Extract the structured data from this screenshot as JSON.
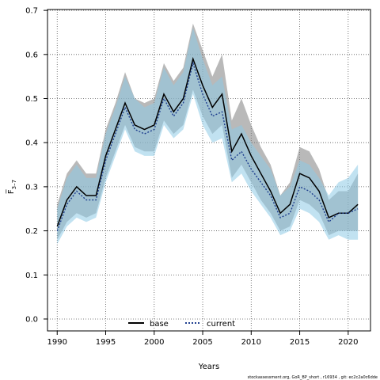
{
  "chart_data": {
    "type": "line",
    "xlabel": "Years",
    "ylabel": "F̅ 3–7",
    "ylabel_main": "F̅",
    "ylabel_sub": "3–7",
    "xlim": [
      1989,
      2022.3
    ],
    "ylim": [
      -0.027,
      0.702
    ],
    "x_ticks": [
      1990,
      1995,
      2000,
      2005,
      2010,
      2015,
      2020
    ],
    "y_ticks": [
      0.0,
      0.1,
      0.2,
      0.3,
      0.4,
      0.5,
      0.6,
      0.7
    ],
    "y_tick_labels": [
      "0.0",
      "0.1",
      "0.2",
      "0.3",
      "0.4",
      "0.5",
      "0.6",
      "0.7"
    ],
    "grid": true,
    "legend_position": "bottom-center",
    "x": [
      1990,
      1991,
      1992,
      1993,
      1994,
      1995,
      1996,
      1997,
      1998,
      1999,
      2000,
      2001,
      2002,
      2003,
      2004,
      2005,
      2006,
      2007,
      2008,
      2009,
      2010,
      2011,
      2012,
      2013,
      2014,
      2015,
      2016,
      2017,
      2018,
      2019,
      2020,
      2021
    ],
    "series": [
      {
        "name": "base",
        "color": "#000000",
        "band_color": "#7f7f7f",
        "line_style": "solid",
        "values": [
          0.21,
          0.27,
          0.3,
          0.28,
          0.28,
          0.37,
          0.43,
          0.49,
          0.44,
          0.43,
          0.44,
          0.51,
          0.47,
          0.5,
          0.59,
          0.53,
          0.48,
          0.51,
          0.38,
          0.42,
          0.37,
          0.33,
          0.29,
          0.24,
          0.26,
          0.33,
          0.32,
          0.29,
          0.23,
          0.24,
          0.24,
          0.26
        ],
        "lower": [
          0.18,
          0.22,
          0.24,
          0.23,
          0.24,
          0.32,
          0.38,
          0.44,
          0.39,
          0.38,
          0.38,
          0.45,
          0.42,
          0.44,
          0.52,
          0.46,
          0.42,
          0.44,
          0.32,
          0.35,
          0.31,
          0.27,
          0.24,
          0.2,
          0.21,
          0.27,
          0.26,
          0.24,
          0.19,
          0.2,
          0.2,
          0.2
        ],
        "upper": [
          0.26,
          0.33,
          0.36,
          0.33,
          0.33,
          0.43,
          0.49,
          0.56,
          0.5,
          0.49,
          0.5,
          0.58,
          0.54,
          0.57,
          0.67,
          0.61,
          0.55,
          0.6,
          0.45,
          0.5,
          0.44,
          0.39,
          0.35,
          0.28,
          0.31,
          0.39,
          0.38,
          0.34,
          0.27,
          0.29,
          0.29,
          0.33
        ]
      },
      {
        "name": "current",
        "color": "#1f3f8f",
        "band_color": "#8ecae6",
        "line_style": "dotted",
        "values": [
          0.2,
          0.26,
          0.29,
          0.27,
          0.27,
          0.36,
          0.42,
          0.48,
          0.43,
          0.42,
          0.43,
          0.5,
          0.46,
          0.49,
          0.58,
          0.51,
          0.46,
          0.47,
          0.36,
          0.38,
          0.34,
          0.31,
          0.28,
          0.23,
          0.24,
          0.3,
          0.29,
          0.27,
          0.22,
          0.24,
          0.24,
          0.25
        ],
        "lower": [
          0.17,
          0.21,
          0.23,
          0.22,
          0.23,
          0.31,
          0.37,
          0.43,
          0.38,
          0.37,
          0.37,
          0.44,
          0.41,
          0.43,
          0.51,
          0.44,
          0.4,
          0.41,
          0.31,
          0.33,
          0.29,
          0.26,
          0.23,
          0.19,
          0.2,
          0.25,
          0.24,
          0.22,
          0.18,
          0.19,
          0.18,
          0.18
        ],
        "upper": [
          0.25,
          0.32,
          0.35,
          0.32,
          0.32,
          0.42,
          0.48,
          0.55,
          0.5,
          0.48,
          0.49,
          0.57,
          0.53,
          0.56,
          0.66,
          0.59,
          0.53,
          0.55,
          0.43,
          0.44,
          0.4,
          0.37,
          0.34,
          0.28,
          0.3,
          0.36,
          0.35,
          0.32,
          0.28,
          0.31,
          0.32,
          0.35
        ]
      }
    ]
  },
  "footer": {
    "caption": "stockassessment.org, GoR_BP_short , r16934 , git: ec2c2a0c6dde"
  }
}
